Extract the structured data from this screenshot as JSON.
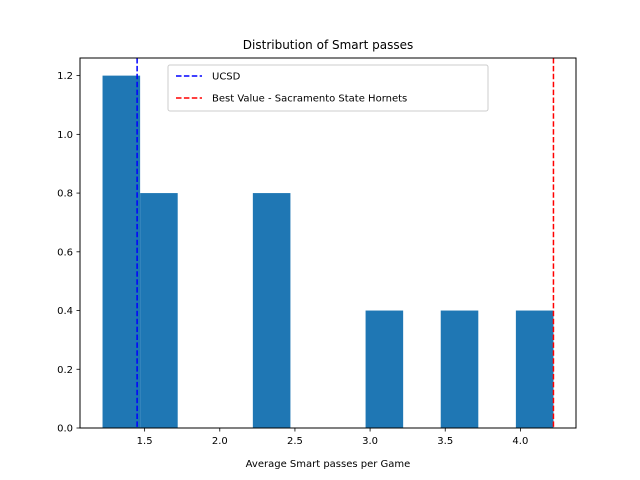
{
  "chart_data": {
    "type": "bar",
    "title": "Distribution of Smart passes",
    "xlabel": "Average Smart passes per Game",
    "ylabel": "",
    "xlim": [
      1.07,
      4.37
    ],
    "ylim": [
      0,
      1.26
    ],
    "xticks": [
      1.5,
      2.0,
      2.5,
      3.0,
      3.5,
      4.0
    ],
    "xtick_labels": [
      "1.5",
      "2.0",
      "2.5",
      "3.0",
      "3.5",
      "4.0"
    ],
    "yticks": [
      0.0,
      0.2,
      0.4,
      0.6,
      0.8,
      1.0,
      1.2
    ],
    "ytick_labels": [
      "0.0",
      "0.2",
      "0.4",
      "0.6",
      "0.8",
      "1.0",
      "1.2"
    ],
    "bar_color": "#1f77b4",
    "bins": [
      {
        "x0": 1.22,
        "x1": 1.47,
        "value": 1.2
      },
      {
        "x0": 1.47,
        "x1": 1.72,
        "value": 0.8
      },
      {
        "x0": 1.72,
        "x1": 1.97,
        "value": 0.0
      },
      {
        "x0": 1.97,
        "x1": 2.22,
        "value": 0.0
      },
      {
        "x0": 2.22,
        "x1": 2.47,
        "value": 0.8
      },
      {
        "x0": 2.47,
        "x1": 2.72,
        "value": 0.0
      },
      {
        "x0": 2.72,
        "x1": 2.97,
        "value": 0.0
      },
      {
        "x0": 2.97,
        "x1": 3.22,
        "value": 0.4
      },
      {
        "x0": 3.22,
        "x1": 3.47,
        "value": 0.0
      },
      {
        "x0": 3.47,
        "x1": 3.72,
        "value": 0.4
      },
      {
        "x0": 3.72,
        "x1": 3.97,
        "value": 0.0
      },
      {
        "x0": 3.97,
        "x1": 4.22,
        "value": 0.4
      }
    ],
    "reference_lines": [
      {
        "name": "UCSD",
        "x": 1.45,
        "color": "#0000ff",
        "style": "dashed"
      },
      {
        "name": "Best Value - Sacramento State Hornets",
        "x": 4.22,
        "color": "#ff0000",
        "style": "dashed"
      }
    ],
    "legend": {
      "placement": "top-center"
    },
    "grid": false
  }
}
